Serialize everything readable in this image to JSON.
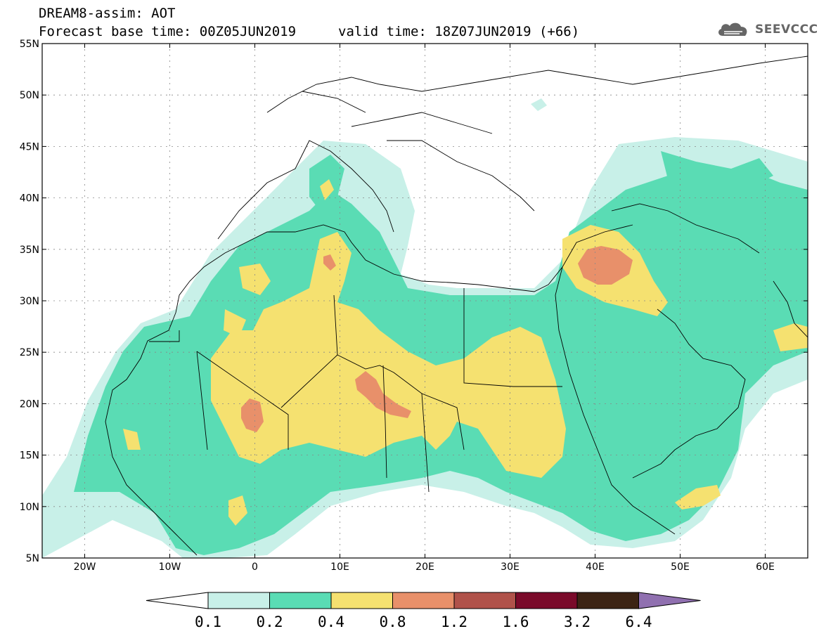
{
  "header": {
    "title": "DREAM8-assim: AOT",
    "forecast_label": "Forecast base time: 00Z05JUN2019",
    "valid_label": "valid time: 18Z07JUN2019 (+66)",
    "logo_text": "SEEVCCC",
    "logo_icon": "cloud-logo-icon"
  },
  "map": {
    "lon_range": [
      -25,
      65
    ],
    "lat_range": [
      5,
      55
    ],
    "lat_labels": [
      "55N",
      "50N",
      "45N",
      "40N",
      "35N",
      "30N",
      "25N",
      "20N",
      "15N",
      "10N",
      "5N"
    ],
    "lon_labels": [
      "20W",
      "10W",
      "0",
      "10E",
      "20E",
      "30E",
      "40E",
      "50E",
      "60E"
    ],
    "grid": true
  },
  "colorbar": {
    "colors": [
      "#c8f0e8",
      "#5adcb4",
      "#f5e170",
      "#e8906a",
      "#b0524a",
      "#7a0a2a",
      "#3c2414"
    ],
    "under_color": "#ffffff",
    "over_color": "#9070b0",
    "tick_labels": [
      "0.1",
      "0.2",
      "0.4",
      "0.8",
      "1.2",
      "1.6",
      "3.2",
      "6.4"
    ]
  }
}
